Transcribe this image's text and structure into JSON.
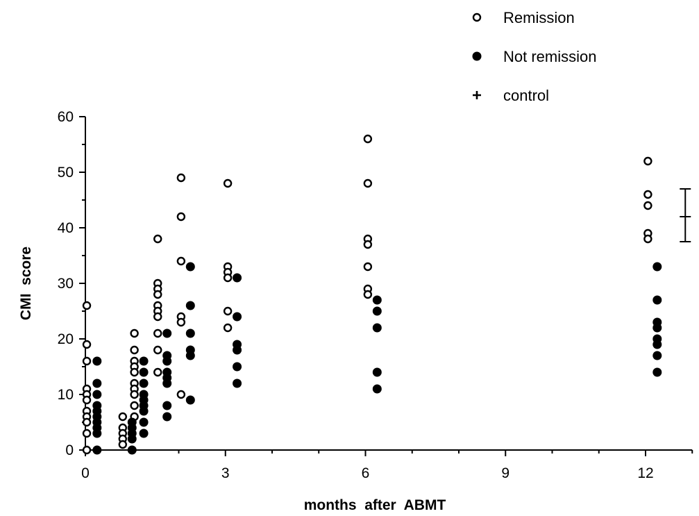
{
  "chart_data": {
    "type": "scatter",
    "title": "",
    "xlabel": "months  after  ABMT",
    "ylabel": "CMI  score",
    "xlim": [
      0,
      13
    ],
    "ylim": [
      0,
      60
    ],
    "x_ticks": [
      0,
      3,
      6,
      9,
      12
    ],
    "x_tick_labels": [
      "0",
      "3",
      "6",
      "9",
      "12"
    ],
    "y_ticks": [
      0,
      10,
      20,
      30,
      40,
      50,
      60
    ],
    "y_tick_labels": [
      "0",
      "10",
      "20",
      "30",
      "40",
      "50",
      "60"
    ],
    "grid": false,
    "legend_position": "top-right",
    "legend": [
      {
        "label": "Remission",
        "marker": "open-circle"
      },
      {
        "label": "Not remission",
        "marker": "filled-circle"
      },
      {
        "label": "control",
        "marker": "plus"
      }
    ],
    "series": [
      {
        "name": "Remission",
        "marker": "open-circle",
        "points": [
          [
            0.03,
            26
          ],
          [
            0.03,
            19
          ],
          [
            0.03,
            16
          ],
          [
            0.03,
            11
          ],
          [
            0.03,
            10
          ],
          [
            0.03,
            9
          ],
          [
            0.03,
            7
          ],
          [
            0.03,
            6
          ],
          [
            0.03,
            5
          ],
          [
            0.03,
            3
          ],
          [
            0.03,
            0
          ],
          [
            0.8,
            6
          ],
          [
            0.8,
            4
          ],
          [
            0.8,
            3
          ],
          [
            0.8,
            2
          ],
          [
            0.8,
            1
          ],
          [
            1.05,
            21
          ],
          [
            1.05,
            18
          ],
          [
            1.05,
            16
          ],
          [
            1.05,
            15
          ],
          [
            1.05,
            14
          ],
          [
            1.05,
            12
          ],
          [
            1.05,
            11
          ],
          [
            1.05,
            10
          ],
          [
            1.05,
            8
          ],
          [
            1.05,
            6
          ],
          [
            1.55,
            38
          ],
          [
            1.55,
            30
          ],
          [
            1.55,
            29
          ],
          [
            1.55,
            28
          ],
          [
            1.55,
            26
          ],
          [
            1.55,
            25
          ],
          [
            1.55,
            24
          ],
          [
            1.55,
            21
          ],
          [
            1.55,
            18
          ],
          [
            1.55,
            14
          ],
          [
            2.05,
            49
          ],
          [
            2.05,
            42
          ],
          [
            2.05,
            34
          ],
          [
            2.05,
            24
          ],
          [
            2.05,
            23
          ],
          [
            2.05,
            10
          ],
          [
            3.05,
            48
          ],
          [
            3.05,
            33
          ],
          [
            3.05,
            32
          ],
          [
            3.05,
            31
          ],
          [
            3.05,
            25
          ],
          [
            3.05,
            22
          ],
          [
            6.05,
            56
          ],
          [
            6.05,
            48
          ],
          [
            6.05,
            38
          ],
          [
            6.05,
            37
          ],
          [
            6.05,
            33
          ],
          [
            6.05,
            29
          ],
          [
            6.05,
            28
          ],
          [
            12.05,
            52
          ],
          [
            12.05,
            46
          ],
          [
            12.05,
            44
          ],
          [
            12.05,
            39
          ],
          [
            12.05,
            38
          ]
        ]
      },
      {
        "name": "Not remission",
        "marker": "filled-circle",
        "points": [
          [
            0.25,
            16
          ],
          [
            0.25,
            12
          ],
          [
            0.25,
            10
          ],
          [
            0.25,
            8
          ],
          [
            0.25,
            7
          ],
          [
            0.25,
            6
          ],
          [
            0.25,
            5
          ],
          [
            0.25,
            4
          ],
          [
            0.25,
            3
          ],
          [
            0.25,
            0
          ],
          [
            1.0,
            5
          ],
          [
            1.0,
            4
          ],
          [
            1.0,
            3
          ],
          [
            1.0,
            2
          ],
          [
            1.0,
            0
          ],
          [
            1.25,
            16
          ],
          [
            1.25,
            14
          ],
          [
            1.25,
            12
          ],
          [
            1.25,
            10
          ],
          [
            1.25,
            9
          ],
          [
            1.25,
            8
          ],
          [
            1.25,
            7
          ],
          [
            1.25,
            5
          ],
          [
            1.25,
            3
          ],
          [
            1.75,
            21
          ],
          [
            1.75,
            17
          ],
          [
            1.75,
            16
          ],
          [
            1.75,
            14
          ],
          [
            1.75,
            13
          ],
          [
            1.75,
            12
          ],
          [
            1.75,
            8
          ],
          [
            1.75,
            6
          ],
          [
            2.25,
            33
          ],
          [
            2.25,
            26
          ],
          [
            2.25,
            21
          ],
          [
            2.25,
            18
          ],
          [
            2.25,
            17
          ],
          [
            2.25,
            9
          ],
          [
            3.25,
            31
          ],
          [
            3.25,
            24
          ],
          [
            3.25,
            19
          ],
          [
            3.25,
            18
          ],
          [
            3.25,
            15
          ],
          [
            3.25,
            12
          ],
          [
            6.25,
            27
          ],
          [
            6.25,
            25
          ],
          [
            6.25,
            22
          ],
          [
            6.25,
            14
          ],
          [
            6.25,
            11
          ],
          [
            12.25,
            33
          ],
          [
            12.25,
            27
          ],
          [
            12.25,
            23
          ],
          [
            12.25,
            22
          ],
          [
            12.25,
            20
          ],
          [
            12.25,
            19
          ],
          [
            12.25,
            17
          ],
          [
            12.25,
            14
          ]
        ]
      },
      {
        "name": "control",
        "marker": "plus",
        "mean": 42,
        "range": [
          37.5,
          47
        ],
        "x": 13
      }
    ]
  }
}
